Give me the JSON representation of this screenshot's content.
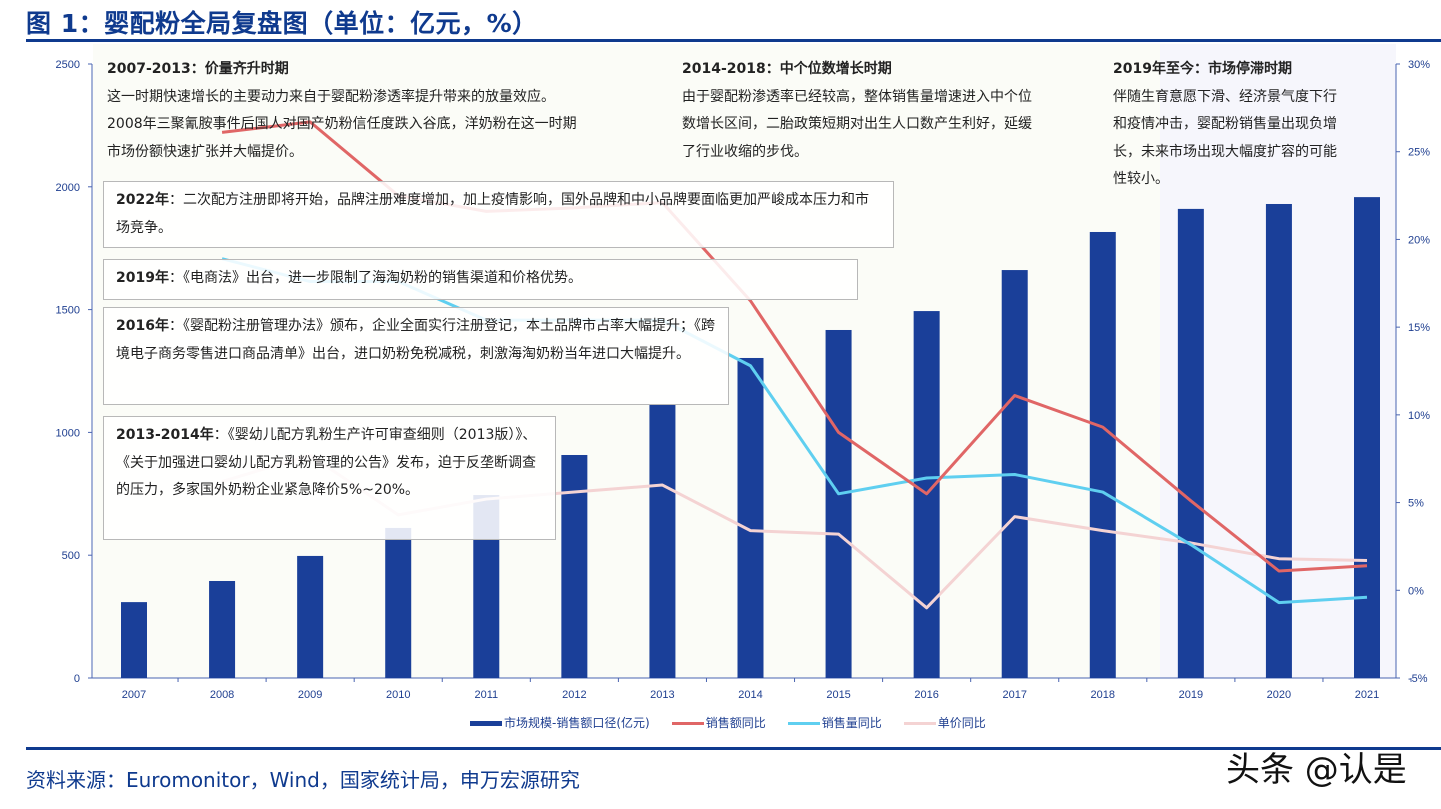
{
  "title": "图 1：婴配粉全局复盘图（单位：亿元，%）",
  "periods": [
    {
      "heading": "2007-2013：价量齐升时期",
      "lines": [
        "这一时期快速增长的主要动力来自于婴配粉渗透率提升带来的放量效应。",
        "2008年三聚氰胺事件后国人对国产奶粉信任度跌入谷底，洋奶粉在这一时期",
        "市场份额快速扩张并大幅提价。"
      ]
    },
    {
      "heading": "2014-2018：中个位数增长时期",
      "lines": [
        "由于婴配粉渗透率已经较高，整体销售量增速进入中个位",
        "数增长区间，二胎政策短期对出生人口数产生利好，延缓",
        "了行业收缩的步伐。"
      ]
    },
    {
      "heading": "2019年至今：市场停滞时期",
      "lines": [
        "伴随生育意愿下滑、经济景气度下行",
        "和疫情冲击，婴配粉销售量出现负增",
        "长，未来市场出现大幅度扩容的可能",
        "性较小。"
      ]
    }
  ],
  "events": [
    {
      "year": "2022年",
      "text": "：二次配方注册即将开始，品牌注册难度增加，加上疫情影响，国外品牌和中小品牌要面临更加严峻成本压力和市场竞争。"
    },
    {
      "year": "2019年",
      "text": "：《电商法》出台，进一步限制了海淘奶粉的销售渠道和价格优势。"
    },
    {
      "year": "2016年",
      "text": "：《婴配粉注册管理办法》颁布，企业全面实行注册登记，本土品牌市占率大幅提升；《跨境电子商务零售进口商品清单》出台，进口奶粉免税减税，刺激海淘奶粉当年进口大幅提升。"
    },
    {
      "year": "2013-2014年",
      "text": "：《婴幼儿配方乳粉生产许可审查细则（2013版）》、《关于加强进口婴幼儿配方乳粉管理的公告》发布，迫于反垄断调查的压力，多家国外奶粉企业紧急降价5%~20%。"
    }
  ],
  "source": "资料来源：Euromonitor，Wind，国家统计局，申万宏源研究",
  "watermark": "头条 @认是",
  "chart_data": {
    "type": "bar+line",
    "categories": [
      "2007",
      "2008",
      "2009",
      "2010",
      "2011",
      "2012",
      "2013",
      "2014",
      "2015",
      "2016",
      "2017",
      "2018",
      "2019",
      "2020",
      "2021"
    ],
    "y_left": {
      "range": [
        0,
        2500
      ],
      "ticks": [
        "0",
        "500",
        "1000",
        "1500",
        "2000",
        "2500"
      ]
    },
    "y_right": {
      "range": [
        -5,
        30
      ],
      "ticks": [
        "-5%",
        "0%",
        "5%",
        "10%",
        "15%",
        "20%",
        "25%",
        "30%"
      ]
    },
    "series": [
      {
        "name": "市场规模-销售额口径(亿元)",
        "type": "bar",
        "axis": "left",
        "color": "#1a3f99",
        "values": [
          309,
          395,
          497,
          611,
          745,
          908,
          1112,
          1303,
          1417,
          1494,
          1661,
          1816,
          1910,
          1930,
          1958
        ]
      },
      {
        "name": "销售额同比",
        "type": "line",
        "axis": "right",
        "color": "#e06666",
        "values": [
          null,
          26.1,
          26.7,
          22.5,
          21.6,
          21.8,
          22.1,
          16.5,
          9.0,
          5.5,
          11.1,
          9.3,
          5.1,
          1.1,
          1.4
        ]
      },
      {
        "name": "销售量同比",
        "type": "line",
        "axis": "right",
        "color": "#5fcff0",
        "values": [
          null,
          18.9,
          17.6,
          17.6,
          15.4,
          15.4,
          15.4,
          12.8,
          5.5,
          6.4,
          6.6,
          5.6,
          2.6,
          -0.7,
          -0.4
        ]
      },
      {
        "name": "单价同比",
        "type": "line",
        "axis": "right",
        "color": "#f4d3d3",
        "values": [
          null,
          6.2,
          7.7,
          4.3,
          5.2,
          5.6,
          6.0,
          3.4,
          3.2,
          -1.0,
          4.2,
          3.4,
          2.7,
          1.8,
          1.7
        ]
      }
    ],
    "highlight_region": {
      "from": "2019",
      "to": "2021",
      "color": "#f6f6fc"
    },
    "legend": "bottom"
  }
}
